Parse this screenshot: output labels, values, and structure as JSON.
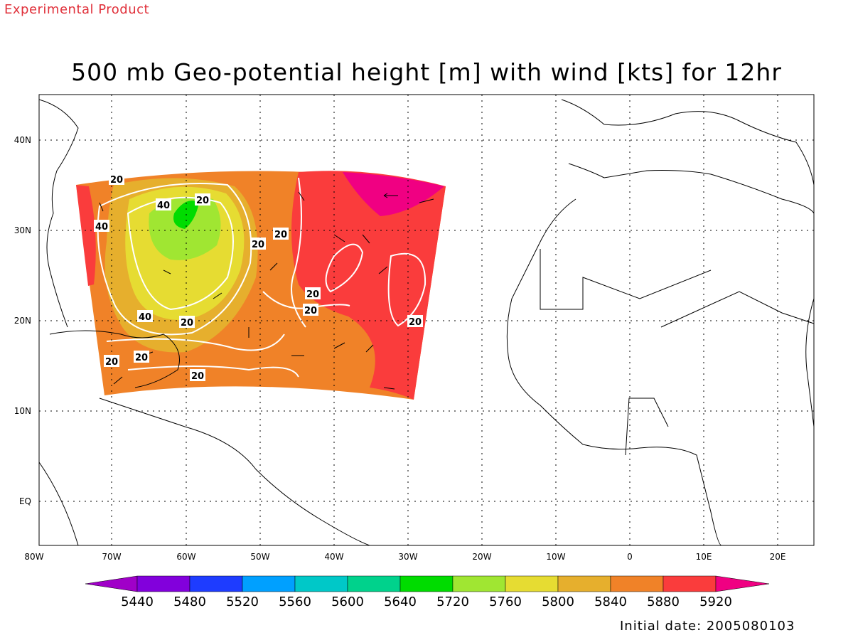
{
  "header": {
    "note": "Experimental Product"
  },
  "title": "500 mb Geo-potential height [m] with wind [kts] for 12hr",
  "footer": {
    "initial_date": "Initial date: 2005080103"
  },
  "map": {
    "lon_ticks": [
      "80W",
      "70W",
      "60W",
      "50W",
      "40W",
      "30W",
      "20W",
      "10W",
      "0",
      "10E",
      "20E"
    ],
    "lat_ticks": [
      "40N",
      "30N",
      "20N",
      "10N",
      "EQ"
    ],
    "contour_labels": [
      {
        "text": "20"
      },
      {
        "text": "40"
      },
      {
        "text": "20"
      },
      {
        "text": "40"
      },
      {
        "text": "20"
      },
      {
        "text": "20"
      },
      {
        "text": "20"
      },
      {
        "text": "20"
      },
      {
        "text": "40"
      },
      {
        "text": "20"
      },
      {
        "text": "20"
      },
      {
        "text": "20"
      },
      {
        "text": "20"
      },
      {
        "text": "20"
      }
    ]
  },
  "colorbar": {
    "levels": [
      "5440",
      "5480",
      "5520",
      "5560",
      "5600",
      "5640",
      "5720",
      "5760",
      "5800",
      "5840",
      "5880",
      "5920"
    ],
    "colors": [
      "#a000c8",
      "#8200dc",
      "#1e3cff",
      "#00a0ff",
      "#00c8c8",
      "#00d28c",
      "#00dc00",
      "#a0e632",
      "#e6dc32",
      "#e6af2d",
      "#f08228",
      "#fa3c3c",
      "#f00082"
    ]
  }
}
